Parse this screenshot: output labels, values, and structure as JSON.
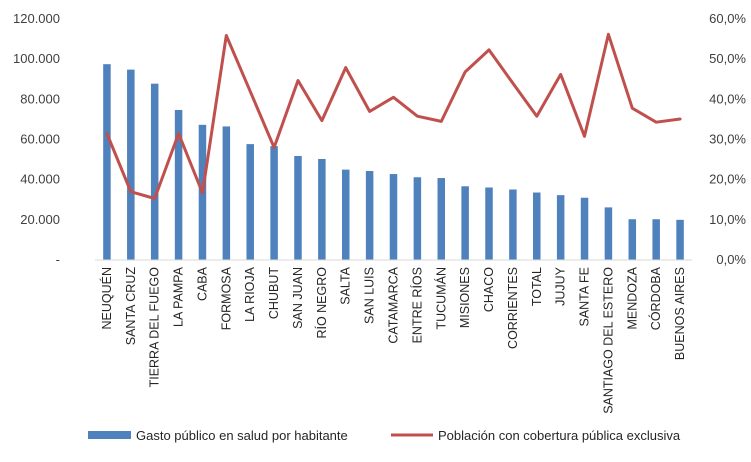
{
  "chart_data": {
    "type": "bar",
    "categories": [
      "NEUQUÉN",
      "SANTA CRUZ",
      "TIERRA DEL FUEGO",
      "LA PAMPA",
      "CABA",
      "FORMOSA",
      "LA RIOJA",
      "CHUBUT",
      "SAN JUAN",
      "RÍO NEGRO",
      "SALTA",
      "SAN LUIS",
      "CATAMARCA",
      "ENTRE RÍOS",
      "TUCUMÁN",
      "MISIONES",
      "CHACO",
      "CORRIENTES",
      "TOTAL",
      "JUJUY",
      "SANTA FE",
      "SANTIAGO DEL ESTERO",
      "MENDOZA",
      "CÓRDOBA",
      "BUENOS AIRES"
    ],
    "series": [
      {
        "name": "Gasto público en salud por habitante",
        "type": "bar",
        "axis": "left",
        "color": "#4F81BD",
        "values": [
          97500,
          94800,
          87800,
          74700,
          67300,
          66500,
          57700,
          56700,
          51800,
          50300,
          45000,
          44300,
          42800,
          41200,
          40800,
          36700,
          36100,
          35100,
          33600,
          32300,
          31000,
          26200,
          20300,
          20300,
          20000
        ]
      },
      {
        "name": "Población con cobertura pública exclusiva",
        "type": "line",
        "axis": "right",
        "color": "#C0504D",
        "values": [
          0.315,
          0.17,
          0.153,
          0.315,
          0.167,
          0.559,
          0.42,
          0.28,
          0.447,
          0.347,
          0.479,
          0.37,
          0.405,
          0.358,
          0.345,
          0.468,
          0.523,
          0.44,
          0.358,
          0.462,
          0.308,
          0.562,
          0.378,
          0.343,
          0.351
        ]
      }
    ],
    "y_left": {
      "range": [
        0,
        120000
      ],
      "ticks": [
        0,
        20000,
        40000,
        60000,
        80000,
        100000,
        120000
      ],
      "tick_labels": [
        "-",
        "20.000",
        "40.000",
        "60.000",
        "80.000",
        "100.000",
        "120.000"
      ]
    },
    "y_right": {
      "range": [
        0,
        0.6
      ],
      "ticks": [
        0,
        0.1,
        0.2,
        0.3,
        0.4,
        0.5,
        0.6
      ],
      "tick_labels": [
        "0,0%",
        "10,0%",
        "20,0%",
        "30,0%",
        "40,0%",
        "50,0%",
        "60,0%"
      ]
    },
    "grid": false,
    "legend_position": "bottom"
  }
}
